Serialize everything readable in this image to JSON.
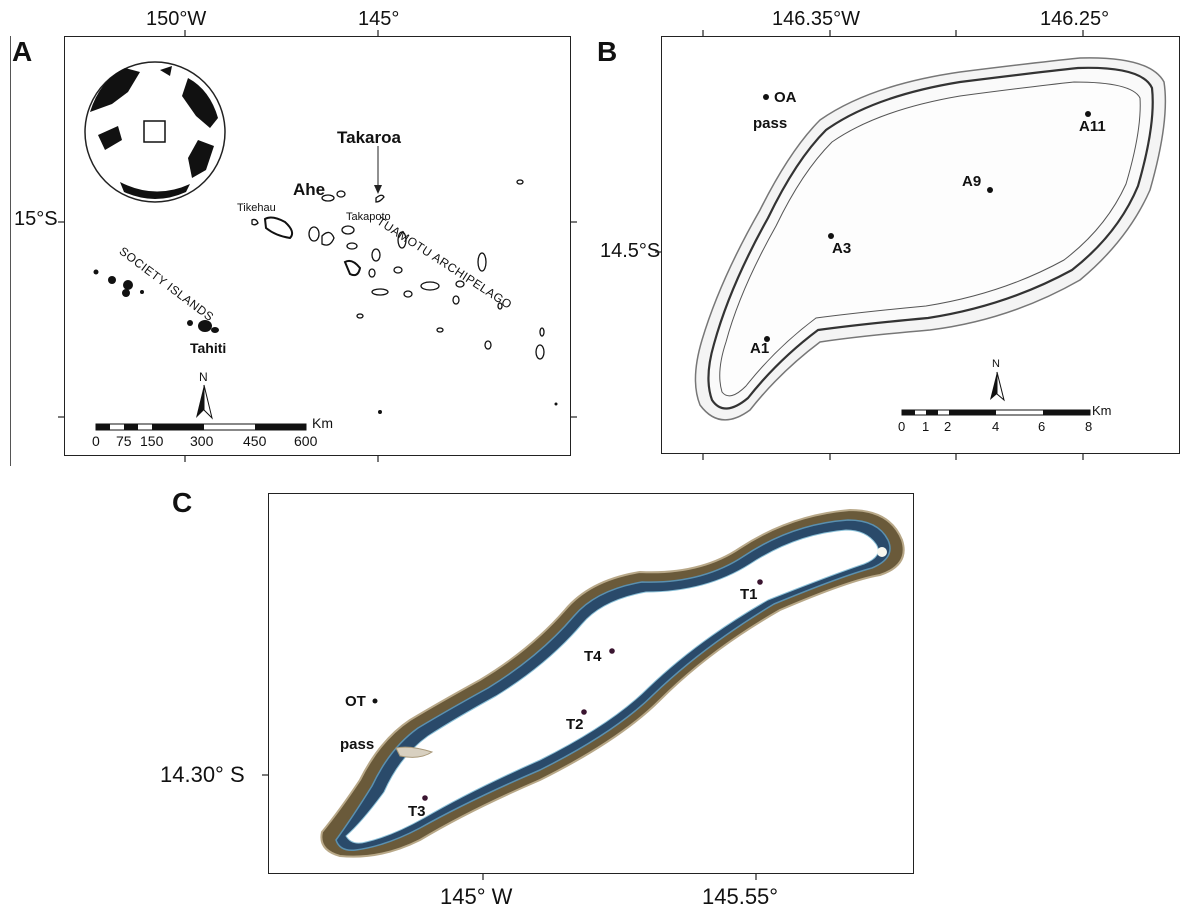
{
  "panel_a": {
    "letter": "A",
    "top_ticks": [
      "150°W",
      "145°"
    ],
    "left_ticks": [
      "15°S"
    ],
    "labels": {
      "takaroa": "Takaroa",
      "ahe": "Ahe",
      "tikehau": "Tikehau",
      "takapoto": "Takapoto",
      "tuamotu": "TUAMOTU ARCHIPELAGO",
      "society": "SOCIETY ISLANDS",
      "tahiti": "Tahiti",
      "north": "N"
    },
    "scale": {
      "unit": "Km",
      "ticks": [
        "0",
        "75",
        "150",
        "300",
        "450",
        "600"
      ]
    }
  },
  "panel_b": {
    "letter": "B",
    "top_ticks": [
      "146.35°W",
      "146.25°"
    ],
    "left_ticks": [
      "14.5°S"
    ],
    "pass_label_1": "OA",
    "pass_label_2": "pass",
    "stations": [
      "A1",
      "A3",
      "A9",
      "A11"
    ],
    "north": "N",
    "scale": {
      "unit": "Km",
      "ticks": [
        "0",
        "1",
        "2",
        "4",
        "6",
        "8"
      ]
    }
  },
  "panel_c": {
    "letter": "C",
    "bottom_ticks": [
      "145° W",
      "145.55°"
    ],
    "left_ticks": [
      "14.30° S"
    ],
    "pass_label_1": "OT",
    "pass_label_2": "pass",
    "stations": [
      "T1",
      "T2",
      "T3",
      "T4"
    ]
  }
}
